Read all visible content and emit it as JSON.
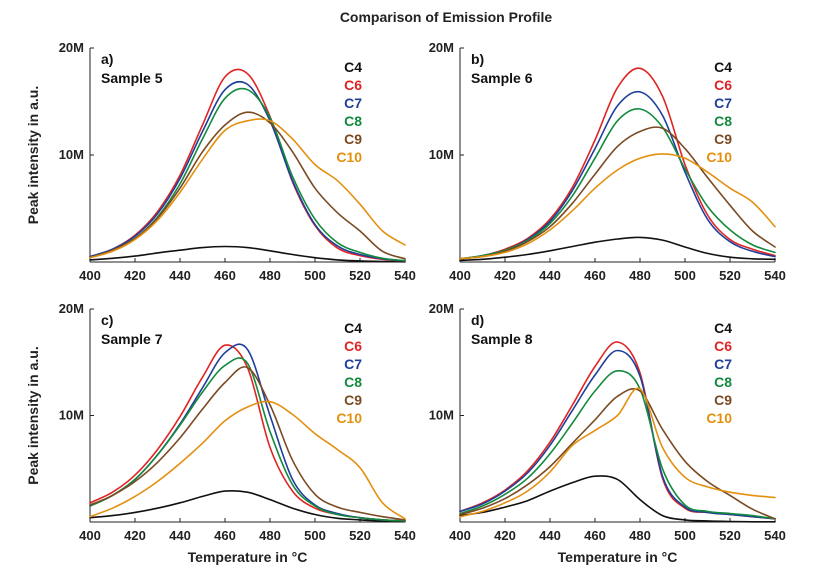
{
  "figure_title": "Comparison of Emission Profile",
  "chart_data": [
    {
      "type": "line",
      "panel_label": "a)",
      "sample": "Sample 5",
      "xlabel": "",
      "ylabel": "Peak intensity in a.u.",
      "xlim": [
        400,
        540
      ],
      "ylim": [
        0,
        20
      ],
      "y_unit": "M",
      "xticks": [
        "400",
        "420",
        "440",
        "460",
        "480",
        "500",
        "520",
        "540"
      ],
      "yticks": [
        {
          "value": 10,
          "label": "10M"
        },
        {
          "value": 20,
          "label": "20M"
        }
      ],
      "x": [
        400,
        410,
        420,
        430,
        440,
        450,
        460,
        470,
        480,
        490,
        500,
        510,
        520,
        530,
        540
      ],
      "series": [
        {
          "name": "C4",
          "color": "#111111",
          "values": [
            0.2,
            0.35,
            0.55,
            0.85,
            1.1,
            1.35,
            1.45,
            1.35,
            1.05,
            0.7,
            0.4,
            0.2,
            0.1,
            0.05,
            0.02
          ]
        },
        {
          "name": "C6",
          "color": "#e02424",
          "values": [
            0.5,
            1.2,
            2.5,
            4.7,
            8.1,
            12.8,
            17.3,
            17.6,
            13.6,
            7.5,
            3.4,
            1.3,
            0.6,
            0.25,
            0.1
          ]
        },
        {
          "name": "C7",
          "color": "#1f3f9a",
          "values": [
            0.5,
            1.2,
            2.4,
            4.5,
            7.8,
            12.2,
            16.1,
            16.6,
            13.2,
            7.6,
            3.5,
            1.5,
            0.7,
            0.3,
            0.1
          ]
        },
        {
          "name": "C8",
          "color": "#138a3e",
          "values": [
            0.4,
            1.1,
            2.2,
            4.2,
            7.3,
            11.5,
            15.3,
            16.1,
            13.5,
            8.0,
            4.0,
            1.8,
            0.9,
            0.35,
            0.12
          ]
        },
        {
          "name": "C9",
          "color": "#7a4a22",
          "values": [
            0.4,
            1.1,
            2.2,
            4.1,
            6.9,
            10.3,
            12.8,
            14.0,
            13.0,
            10.3,
            6.9,
            4.6,
            2.9,
            1.0,
            0.3
          ]
        },
        {
          "name": "C10",
          "color": "#e3900f",
          "values": [
            0.4,
            1.0,
            2.1,
            3.9,
            6.5,
            9.6,
            12.3,
            13.2,
            13.2,
            11.5,
            9.1,
            7.6,
            5.4,
            2.9,
            1.6
          ]
        }
      ]
    },
    {
      "type": "line",
      "panel_label": "b)",
      "sample": "Sample 6",
      "xlabel": "",
      "ylabel": "",
      "xlim": [
        400,
        540
      ],
      "ylim": [
        0,
        20
      ],
      "y_unit": "M",
      "xticks": [
        "400",
        "420",
        "440",
        "460",
        "480",
        "500",
        "520",
        "540"
      ],
      "yticks": [
        {
          "value": 10,
          "label": "10M"
        },
        {
          "value": 20,
          "label": "20M"
        }
      ],
      "x": [
        400,
        410,
        420,
        430,
        440,
        450,
        460,
        470,
        480,
        490,
        500,
        510,
        520,
        530,
        540
      ],
      "series": [
        {
          "name": "C4",
          "color": "#111111",
          "values": [
            0.15,
            0.25,
            0.45,
            0.7,
            1.05,
            1.45,
            1.85,
            2.15,
            2.3,
            2.05,
            1.4,
            0.8,
            0.45,
            0.3,
            0.25
          ]
        },
        {
          "name": "C6",
          "color": "#e02424",
          "values": [
            0.3,
            0.6,
            1.2,
            2.2,
            4.0,
            7.0,
            11.4,
            16.3,
            18.1,
            15.5,
            9.1,
            4.4,
            2.1,
            1.2,
            0.6
          ]
        },
        {
          "name": "C7",
          "color": "#1f3f9a",
          "values": [
            0.3,
            0.6,
            1.1,
            2.1,
            3.8,
            6.7,
            10.6,
            14.6,
            15.9,
            13.7,
            8.4,
            4.0,
            1.9,
            1.0,
            0.5
          ]
        },
        {
          "name": "C8",
          "color": "#138a3e",
          "values": [
            0.3,
            0.6,
            1.1,
            2.0,
            3.6,
            6.2,
            9.7,
            13.2,
            14.3,
            12.6,
            8.7,
            5.2,
            3.0,
            1.6,
            0.9
          ]
        },
        {
          "name": "C9",
          "color": "#7a4a22",
          "values": [
            0.3,
            0.5,
            1.0,
            1.9,
            3.3,
            5.5,
            8.2,
            10.8,
            12.2,
            12.5,
            10.6,
            7.9,
            5.3,
            2.9,
            1.4
          ]
        },
        {
          "name": "C10",
          "color": "#e3900f",
          "values": [
            0.3,
            0.5,
            0.9,
            1.7,
            3.0,
            4.8,
            6.9,
            8.6,
            9.7,
            10.1,
            9.7,
            8.4,
            6.9,
            5.6,
            3.3
          ]
        }
      ]
    },
    {
      "type": "line",
      "panel_label": "c)",
      "sample": "Sample 7",
      "xlabel": "Temperature in °C",
      "ylabel": "Peak intensity in a.u.",
      "xlim": [
        400,
        540
      ],
      "ylim": [
        0,
        20
      ],
      "y_unit": "M",
      "xticks": [
        "400",
        "420",
        "440",
        "460",
        "480",
        "500",
        "520",
        "540"
      ],
      "yticks": [
        {
          "value": 10,
          "label": "10M"
        },
        {
          "value": 20,
          "label": "20M"
        }
      ],
      "x": [
        400,
        410,
        420,
        430,
        440,
        450,
        460,
        470,
        480,
        490,
        500,
        510,
        520,
        530,
        540
      ],
      "series": [
        {
          "name": "C4",
          "color": "#111111",
          "values": [
            0.4,
            0.6,
            0.9,
            1.3,
            1.8,
            2.4,
            2.9,
            2.8,
            2.1,
            1.3,
            0.7,
            0.35,
            0.2,
            0.1,
            0.05
          ]
        },
        {
          "name": "C6",
          "color": "#e02424",
          "values": [
            1.8,
            2.8,
            4.4,
            6.8,
            9.9,
            13.6,
            16.6,
            14.5,
            7.0,
            2.9,
            1.3,
            0.7,
            0.4,
            0.2,
            0.1
          ]
        },
        {
          "name": "C7",
          "color": "#1f3f9a",
          "values": [
            1.5,
            2.5,
            4.0,
            6.3,
            9.2,
            12.6,
            15.9,
            16.2,
            10.0,
            4.0,
            1.6,
            0.8,
            0.4,
            0.2,
            0.1
          ]
        },
        {
          "name": "C8",
          "color": "#138a3e",
          "values": [
            1.5,
            2.5,
            4.0,
            6.3,
            9.1,
            12.2,
            14.7,
            14.9,
            8.5,
            3.5,
            1.5,
            0.7,
            0.4,
            0.2,
            0.1
          ]
        },
        {
          "name": "C9",
          "color": "#7a4a22",
          "values": [
            1.6,
            2.5,
            3.8,
            5.6,
            7.9,
            10.6,
            13.1,
            14.5,
            11.0,
            5.8,
            2.6,
            1.4,
            0.9,
            0.5,
            0.2
          ]
        },
        {
          "name": "C10",
          "color": "#e3900f",
          "values": [
            0.5,
            1.3,
            2.4,
            3.8,
            5.5,
            7.4,
            9.5,
            10.8,
            11.3,
            10.1,
            8.3,
            6.8,
            5.1,
            1.8,
            0.3
          ]
        }
      ]
    },
    {
      "type": "line",
      "panel_label": "d)",
      "sample": "Sample 8",
      "xlabel": "Temperature in °C",
      "ylabel": "",
      "xlim": [
        400,
        540
      ],
      "ylim": [
        0,
        20
      ],
      "y_unit": "M",
      "xticks": [
        "400",
        "420",
        "440",
        "460",
        "480",
        "500",
        "520",
        "540"
      ],
      "yticks": [
        {
          "value": 10,
          "label": "10M"
        },
        {
          "value": 20,
          "label": "20M"
        }
      ],
      "x": [
        400,
        410,
        420,
        430,
        440,
        450,
        460,
        470,
        480,
        490,
        500,
        510,
        520,
        530,
        540
      ],
      "series": [
        {
          "name": "C4",
          "color": "#111111",
          "values": [
            0.6,
            0.9,
            1.4,
            2.0,
            2.9,
            3.7,
            4.3,
            4.0,
            2.1,
            0.6,
            0.2,
            0.1,
            0.05,
            0.02,
            0.02
          ]
        },
        {
          "name": "C6",
          "color": "#e02424",
          "values": [
            1.0,
            1.8,
            3.0,
            4.8,
            7.5,
            11.0,
            14.6,
            16.9,
            14.0,
            4.1,
            1.3,
            0.9,
            0.7,
            0.5,
            0.3
          ]
        },
        {
          "name": "C7",
          "color": "#1f3f9a",
          "values": [
            1.0,
            1.7,
            2.9,
            4.6,
            7.2,
            10.5,
            13.8,
            16.1,
            13.7,
            4.3,
            1.4,
            0.9,
            0.7,
            0.5,
            0.3
          ]
        },
        {
          "name": "C8",
          "color": "#138a3e",
          "values": [
            0.8,
            1.5,
            2.6,
            4.1,
            6.4,
            9.3,
            12.3,
            14.2,
            12.5,
            5.0,
            1.6,
            1.0,
            0.8,
            0.6,
            0.3
          ]
        },
        {
          "name": "C9",
          "color": "#7a4a22",
          "values": [
            0.7,
            1.3,
            2.2,
            3.5,
            5.2,
            7.4,
            9.6,
            11.8,
            12.3,
            8.7,
            5.7,
            3.8,
            2.5,
            1.2,
            0.3
          ]
        },
        {
          "name": "C10",
          "color": "#e3900f",
          "values": [
            0.5,
            1.0,
            1.8,
            2.9,
            4.7,
            7.2,
            8.6,
            10.0,
            12.5,
            7.0,
            4.2,
            3.3,
            2.8,
            2.5,
            2.3
          ]
        }
      ]
    }
  ]
}
